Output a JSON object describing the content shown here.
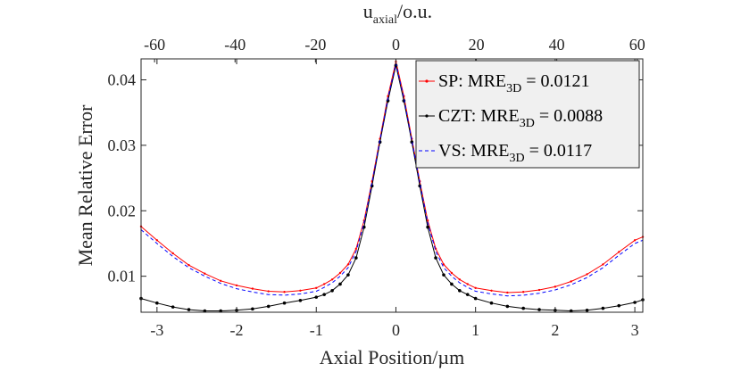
{
  "chart_data": {
    "type": "line",
    "title": "",
    "xlabel": "Axial Position/µm",
    "ylabel": "Mean Relative Error",
    "top_xlabel": {
      "main": "u",
      "sub": "axial",
      "rest": "/o.u."
    },
    "xlim": [
      -3.2,
      3.1
    ],
    "ylim": [
      0.0045,
      0.0432
    ],
    "x_ticks": [
      -3,
      -2,
      -1,
      0,
      1,
      2,
      3
    ],
    "x_tick_labels": [
      "-3",
      "-2",
      "-1",
      "0",
      "1",
      "2",
      "3"
    ],
    "y_ticks": [
      0.01,
      0.02,
      0.03,
      0.04
    ],
    "y_tick_labels": [
      "0.01",
      "0.02",
      "0.03",
      "0.04"
    ],
    "top_ticks": [
      -60,
      -40,
      -20,
      0,
      20,
      40,
      60
    ],
    "top_tick_labels": [
      "-60",
      "-40",
      "-20",
      "0",
      "20",
      "40",
      "60"
    ],
    "top_scale_per_um": 19.8,
    "legend_position": "top-right",
    "series": [
      {
        "name": "SP",
        "legend": {
          "pre": "SP: MRE",
          "sub": "3D",
          "post": " = 0.0121"
        },
        "color": "#ff0000",
        "style": "solid-dot",
        "x": [
          -3.2,
          -3.0,
          -2.8,
          -2.6,
          -2.4,
          -2.2,
          -2.0,
          -1.8,
          -1.6,
          -1.4,
          -1.2,
          -1.0,
          -0.9,
          -0.8,
          -0.7,
          -0.6,
          -0.5,
          -0.4,
          -0.3,
          -0.2,
          -0.1,
          0.0,
          0.1,
          0.2,
          0.3,
          0.4,
          0.5,
          0.6,
          0.7,
          0.8,
          0.9,
          1.0,
          1.2,
          1.4,
          1.6,
          1.8,
          2.0,
          2.2,
          2.4,
          2.6,
          2.8,
          3.0,
          3.1
        ],
        "values": [
          0.0176,
          0.0155,
          0.0135,
          0.0117,
          0.0104,
          0.0093,
          0.0086,
          0.0081,
          0.0077,
          0.0076,
          0.0078,
          0.0082,
          0.0088,
          0.0095,
          0.0105,
          0.0118,
          0.0142,
          0.0185,
          0.0245,
          0.031,
          0.0375,
          0.0428,
          0.0375,
          0.031,
          0.0245,
          0.0185,
          0.0142,
          0.0118,
          0.0105,
          0.0095,
          0.0088,
          0.0082,
          0.0078,
          0.0075,
          0.0076,
          0.0079,
          0.0084,
          0.0092,
          0.0103,
          0.0118,
          0.0137,
          0.0155,
          0.016
        ]
      },
      {
        "name": "CZT",
        "legend": {
          "pre": "CZT: MRE",
          "sub": "3D",
          "post": " = 0.0088"
        },
        "color": "#000000",
        "style": "solid-dot",
        "x": [
          -3.2,
          -3.0,
          -2.8,
          -2.6,
          -2.4,
          -2.2,
          -2.0,
          -1.8,
          -1.6,
          -1.4,
          -1.2,
          -1.0,
          -0.9,
          -0.8,
          -0.7,
          -0.6,
          -0.5,
          -0.4,
          -0.3,
          -0.2,
          -0.1,
          0.0,
          0.1,
          0.2,
          0.3,
          0.4,
          0.5,
          0.6,
          0.7,
          0.8,
          0.9,
          1.0,
          1.2,
          1.4,
          1.6,
          1.8,
          2.0,
          2.2,
          2.4,
          2.6,
          2.8,
          3.0,
          3.1
        ],
        "values": [
          0.0066,
          0.0059,
          0.0053,
          0.0049,
          0.0047,
          0.0047,
          0.0048,
          0.005,
          0.0054,
          0.0059,
          0.0063,
          0.0068,
          0.0072,
          0.0078,
          0.0088,
          0.0102,
          0.0128,
          0.0175,
          0.0238,
          0.0305,
          0.0368,
          0.0422,
          0.0368,
          0.0305,
          0.0238,
          0.0175,
          0.0128,
          0.0102,
          0.0088,
          0.0078,
          0.0072,
          0.0066,
          0.0059,
          0.0054,
          0.0051,
          0.0049,
          0.0048,
          0.0047,
          0.0048,
          0.0051,
          0.0055,
          0.006,
          0.0064
        ]
      },
      {
        "name": "VS",
        "legend": {
          "pre": "VS: MRE",
          "sub": "3D",
          "post": " = 0.0117"
        },
        "color": "#0000ff",
        "style": "dashed",
        "x": [
          -3.2,
          -3.0,
          -2.8,
          -2.6,
          -2.4,
          -2.2,
          -2.0,
          -1.8,
          -1.6,
          -1.4,
          -1.2,
          -1.0,
          -0.9,
          -0.8,
          -0.7,
          -0.6,
          -0.5,
          -0.4,
          -0.3,
          -0.2,
          -0.1,
          0.0,
          0.1,
          0.2,
          0.3,
          0.4,
          0.5,
          0.6,
          0.7,
          0.8,
          0.9,
          1.0,
          1.2,
          1.4,
          1.6,
          1.8,
          2.0,
          2.2,
          2.4,
          2.6,
          2.8,
          3.0,
          3.1
        ],
        "values": [
          0.0171,
          0.015,
          0.013,
          0.0113,
          0.01,
          0.0089,
          0.0081,
          0.0076,
          0.0072,
          0.0071,
          0.0073,
          0.0077,
          0.0083,
          0.009,
          0.01,
          0.0113,
          0.0138,
          0.0182,
          0.0243,
          0.0308,
          0.0372,
          0.0425,
          0.0372,
          0.0308,
          0.0243,
          0.0182,
          0.0138,
          0.0113,
          0.01,
          0.009,
          0.0083,
          0.0077,
          0.0073,
          0.007,
          0.0071,
          0.0074,
          0.0079,
          0.0087,
          0.0098,
          0.0113,
          0.0132,
          0.015,
          0.0155
        ]
      }
    ]
  }
}
